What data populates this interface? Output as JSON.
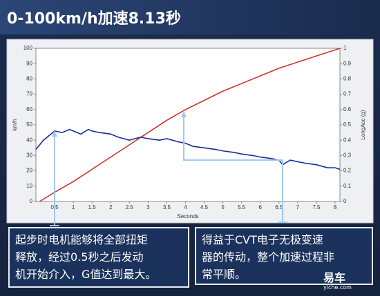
{
  "title": "0-100km/h加速8.13秒",
  "chart_data": {
    "type": "line",
    "xlabel": "Seconds",
    "ylabel": "km/h",
    "y2label": "LongAcc (g)",
    "xlim": [
      0,
      8.13
    ],
    "xticks": [
      0.5,
      1,
      1.5,
      2,
      2.5,
      3,
      3.5,
      4,
      4.5,
      5,
      5.5,
      6,
      6.5,
      7,
      7.5,
      8
    ],
    "ylim": [
      0,
      100
    ],
    "yticks": [
      0,
      10,
      20,
      30,
      40,
      50,
      60,
      70,
      80,
      90,
      100
    ],
    "y2lim": [
      0,
      1
    ],
    "y2ticks": [
      0,
      0.1,
      0.2,
      0.3,
      0.4,
      0.5,
      0.6,
      0.7,
      0.8,
      0.9,
      1
    ],
    "series": [
      {
        "name": "km/h",
        "color": "#cc3328",
        "x": [
          0.1,
          0.5,
          1,
          1.5,
          2,
          2.5,
          3,
          3.5,
          4,
          4.5,
          5,
          5.5,
          6,
          6.5,
          7,
          7.5,
          8.13
        ],
        "values": [
          0,
          6,
          13,
          21,
          29,
          37,
          45,
          53,
          60,
          66,
          72,
          77,
          82,
          87,
          91,
          95,
          100
        ]
      },
      {
        "name": "LongAcc (g)",
        "color": "#1a2a9a",
        "axis": "y2",
        "x": [
          0,
          0.2,
          0.4,
          0.5,
          0.7,
          0.9,
          1,
          1.2,
          1.4,
          1.5,
          1.7,
          2,
          2.2,
          2.5,
          2.8,
          3,
          3.3,
          3.5,
          3.8,
          4,
          4.2,
          4.5,
          4.8,
          5,
          5.3,
          5.5,
          5.8,
          6,
          6.3,
          6.5,
          6.6,
          6.8,
          7,
          7.2,
          7.5,
          7.8,
          8,
          8.13
        ],
        "values": [
          0.34,
          0.4,
          0.44,
          0.46,
          0.45,
          0.47,
          0.46,
          0.44,
          0.47,
          0.46,
          0.45,
          0.44,
          0.42,
          0.4,
          0.42,
          0.41,
          0.4,
          0.41,
          0.39,
          0.38,
          0.36,
          0.35,
          0.34,
          0.33,
          0.32,
          0.31,
          0.3,
          0.29,
          0.28,
          0.27,
          0.24,
          0.27,
          0.26,
          0.25,
          0.24,
          0.22,
          0.22,
          0.21
        ]
      }
    ]
  },
  "notes": {
    "left": [
      "起步时电机能够将全部扭矩",
      "释放，经过0.5秒之后发动",
      "机开始介入，G值达到最大。"
    ],
    "right": [
      "得益于CVT电子无极变速",
      "器的传动，整个加速过程非",
      "常平顺。"
    ]
  },
  "logo": {
    "name": "易车",
    "site": "yiche.com"
  }
}
